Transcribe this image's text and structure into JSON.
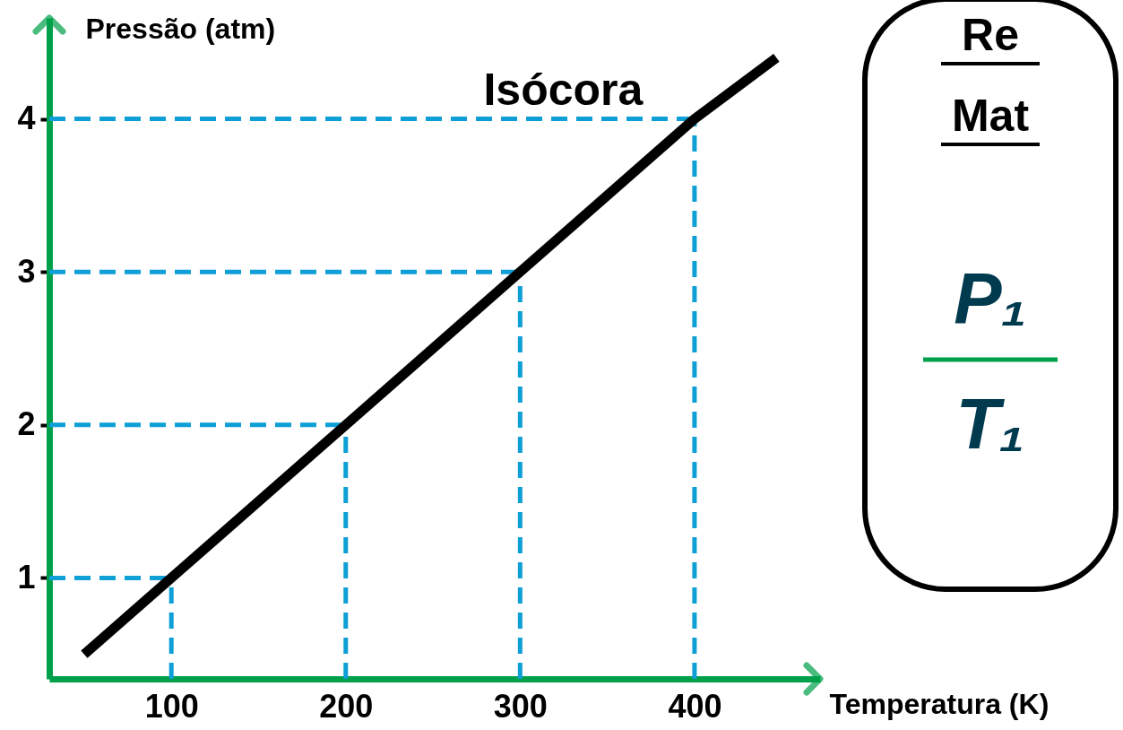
{
  "chart_data": [
    {
      "type": "line",
      "ylabel": "Pressão (atm)",
      "xlabel": "Temperatura (K)",
      "xlim": [
        30,
        472
      ],
      "ylim": [
        0.34,
        4.66
      ],
      "xticks": [
        100,
        200,
        300,
        400
      ],
      "yticks": [
        1,
        2,
        3,
        4
      ],
      "grid": false,
      "series": [
        {
          "name": "Isócora",
          "color": "#000000",
          "x": [
            50,
            100,
            200,
            300,
            400,
            447
          ],
          "values": [
            0.5,
            1,
            2,
            3,
            4,
            4.4
          ]
        }
      ],
      "ref_lines": [
        {
          "axis": "x",
          "value": 100,
          "color": "#0d9fd6",
          "line_style": "dashed"
        },
        {
          "axis": "x",
          "value": 200,
          "color": "#0d9fd6",
          "line_style": "dashed"
        },
        {
          "axis": "x",
          "value": 300,
          "color": "#0d9fd6",
          "line_style": "dashed"
        },
        {
          "axis": "x",
          "value": 400,
          "color": "#0d9fd6",
          "line_style": "dashed"
        },
        {
          "axis": "y",
          "value": 1,
          "color": "#0d9fd6",
          "line_style": "dashed"
        },
        {
          "axis": "y",
          "value": 2,
          "color": "#0d9fd6",
          "line_style": "dashed"
        },
        {
          "axis": "y",
          "value": 3,
          "color": "#0d9fd6",
          "line_style": "dashed"
        },
        {
          "axis": "y",
          "value": 4,
          "color": "#0d9fd6",
          "line_style": "dashed"
        }
      ]
    },
    {
      "type": "other",
      "annotations": [
        "Re",
        "Mat",
        "P₁",
        "T₁"
      ]
    }
  ]
}
